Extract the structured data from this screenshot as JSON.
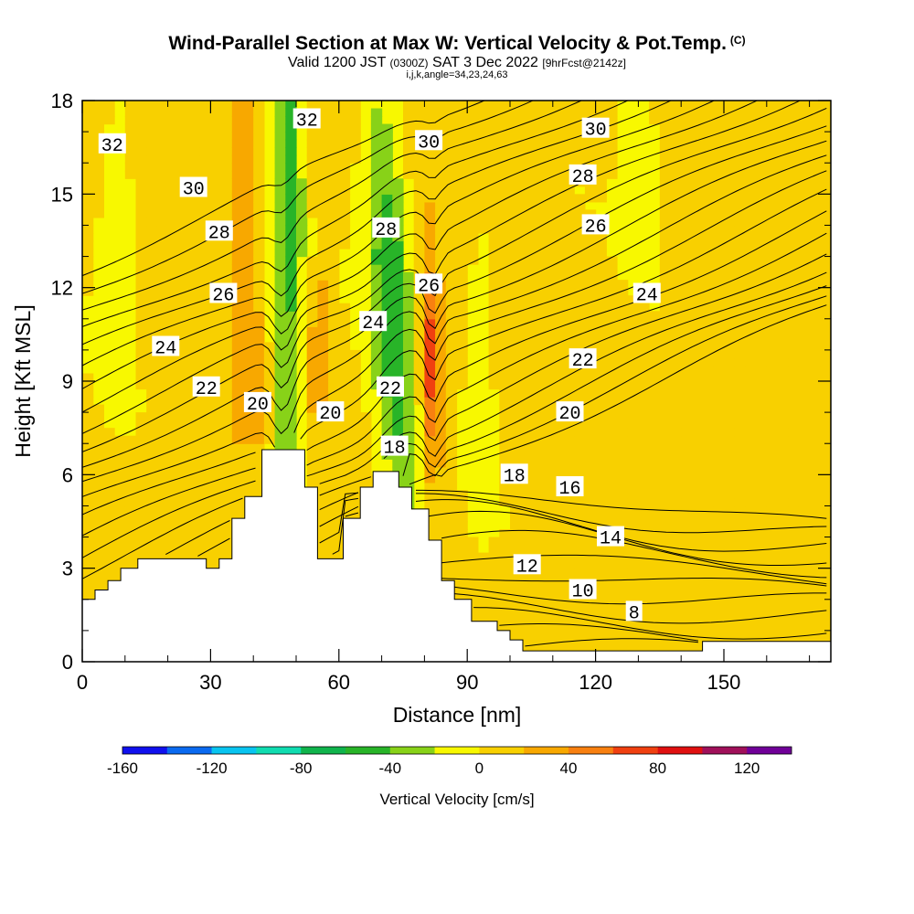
{
  "title": "Wind-Parallel Section at Max W: Vertical Velocity & Pot.Temp.",
  "title_unit": "(C)",
  "subtitle_main": "Valid 1200 JST",
  "subtitle_utc": "(0300Z)",
  "subtitle_date": "SAT 3 Dec 2022",
  "subtitle_fcst": "[9hrFcst@2142z]",
  "subtitle_ijk": "i,j,k,angle=34,23,24,63",
  "chart_data": {
    "type": "heatmap",
    "xlabel": "Distance [nm]",
    "ylabel": "Height [Kft MSL]",
    "xlim": [
      0,
      175
    ],
    "ylim": [
      0,
      18
    ],
    "x_ticks": [
      "0",
      "30",
      "60",
      "90",
      "120",
      "150"
    ],
    "y_ticks": [
      "0",
      "3",
      "6",
      "9",
      "12",
      "15",
      "18"
    ],
    "colorbar": {
      "title": "Vertical Velocity [cm/s]",
      "range": [
        -160,
        140
      ],
      "step": 20,
      "labels": [
        "-160",
        "-120",
        "-80",
        "-40",
        "0",
        "40",
        "80",
        "120"
      ],
      "colors": [
        "#1010ee",
        "#0a6af0",
        "#08c4f0",
        "#10dcb0",
        "#10b44c",
        "#28b428",
        "#88d218",
        "#f8f800",
        "#f8d000",
        "#f8a800",
        "#f88010",
        "#f04010",
        "#e01010",
        "#a0105a",
        "#700098"
      ]
    },
    "theta_contour_labels": [
      {
        "text": "32",
        "x": 7,
        "y": 16.6
      },
      {
        "text": "32",
        "x": 52.5,
        "y": 17.4
      },
      {
        "text": "30",
        "x": 26,
        "y": 15.2
      },
      {
        "text": "30",
        "x": 81,
        "y": 16.7
      },
      {
        "text": "30",
        "x": 120,
        "y": 17.1
      },
      {
        "text": "28",
        "x": 32,
        "y": 13.8
      },
      {
        "text": "28",
        "x": 71,
        "y": 13.9
      },
      {
        "text": "28",
        "x": 117,
        "y": 15.6
      },
      {
        "text": "26",
        "x": 33,
        "y": 11.8
      },
      {
        "text": "26",
        "x": 81,
        "y": 12.1
      },
      {
        "text": "26",
        "x": 120,
        "y": 14.0
      },
      {
        "text": "24",
        "x": 19.5,
        "y": 10.1
      },
      {
        "text": "24",
        "x": 68,
        "y": 10.9
      },
      {
        "text": "24",
        "x": 132,
        "y": 11.8
      },
      {
        "text": "22",
        "x": 29,
        "y": 8.8
      },
      {
        "text": "22",
        "x": 72,
        "y": 8.8
      },
      {
        "text": "22",
        "x": 117,
        "y": 9.7
      },
      {
        "text": "20",
        "x": 41,
        "y": 8.3
      },
      {
        "text": "20",
        "x": 58,
        "y": 8.0
      },
      {
        "text": "20",
        "x": 114,
        "y": 8.0
      },
      {
        "text": "18",
        "x": 73,
        "y": 6.9
      },
      {
        "text": "18",
        "x": 101,
        "y": 6.0
      },
      {
        "text": "16",
        "x": 114,
        "y": 5.6
      },
      {
        "text": "14",
        "x": 123.5,
        "y": 4.0
      },
      {
        "text": "12",
        "x": 104,
        "y": 3.1
      },
      {
        "text": "10",
        "x": 117,
        "y": 2.3
      },
      {
        "text": "8",
        "x": 129,
        "y": 1.6
      }
    ]
  }
}
